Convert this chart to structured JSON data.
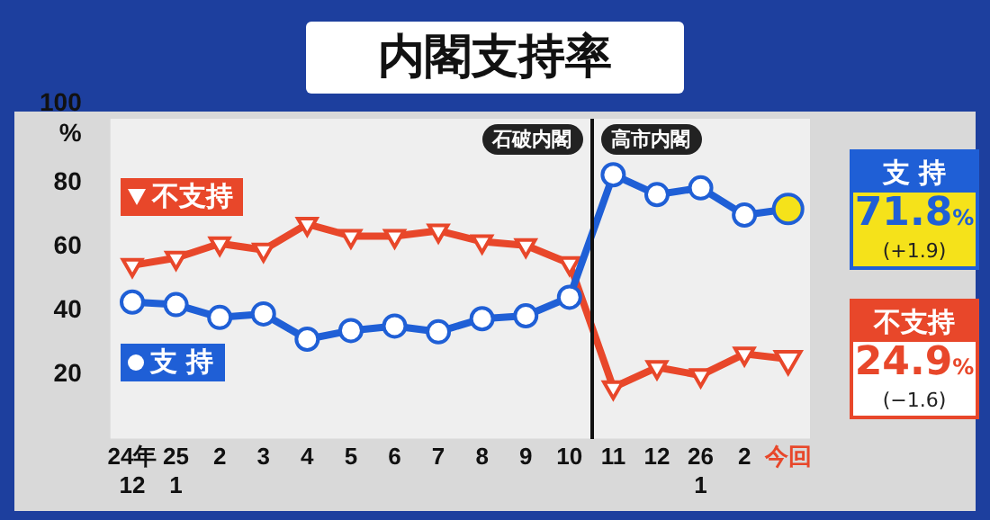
{
  "chart_data": {
    "type": "line",
    "title": "内閣支持率",
    "categories": [
      "24年\n12",
      "25\n1",
      "2",
      "3",
      "4",
      "5",
      "6",
      "7",
      "8",
      "9",
      "10",
      "11",
      "12",
      "26\n1",
      "2",
      "今回"
    ],
    "series": [
      {
        "name": "支 持",
        "color": "#1f5fd6",
        "marker": "circle",
        "values": [
          42.7,
          41.9,
          37.9,
          39,
          31.1,
          33.8,
          35.2,
          33.4,
          37.5,
          38.4,
          44.2,
          82.5,
          76.3,
          78.4,
          69.9,
          71.8
        ],
        "value_labels": [
          null,
          null,
          null,
          null,
          null,
          null,
          null,
          null,
          null,
          null,
          null,
          null,
          null,
          null,
          null,
          "71.8%"
        ]
      },
      {
        "name": "不支持",
        "color": "#e8472a",
        "marker": "triangle",
        "values": [
          54.2,
          56.5,
          61,
          59,
          67.1,
          63.3,
          63.3,
          65,
          61.6,
          60.4,
          54.8,
          16,
          22.3,
          19.8,
          26.5,
          24.9
        ],
        "value_labels": [
          null,
          null,
          null,
          null,
          null,
          null,
          null,
          null,
          null,
          null,
          null,
          null,
          null,
          null,
          null,
          "24.9%"
        ]
      }
    ],
    "ylim": [
      0,
      100
    ],
    "yticks": [
      20,
      40,
      60,
      80,
      {
        "value": 100,
        "label": "100\n%"
      }
    ],
    "legend": "left",
    "ref_lines": [
      {
        "axis": "x",
        "value": "11",
        "color": "#111111"
      }
    ],
    "annotations": [
      "石破内閣",
      "高市内閣",
      "(+1.9)",
      "(−1.6)"
    ]
  }
}
